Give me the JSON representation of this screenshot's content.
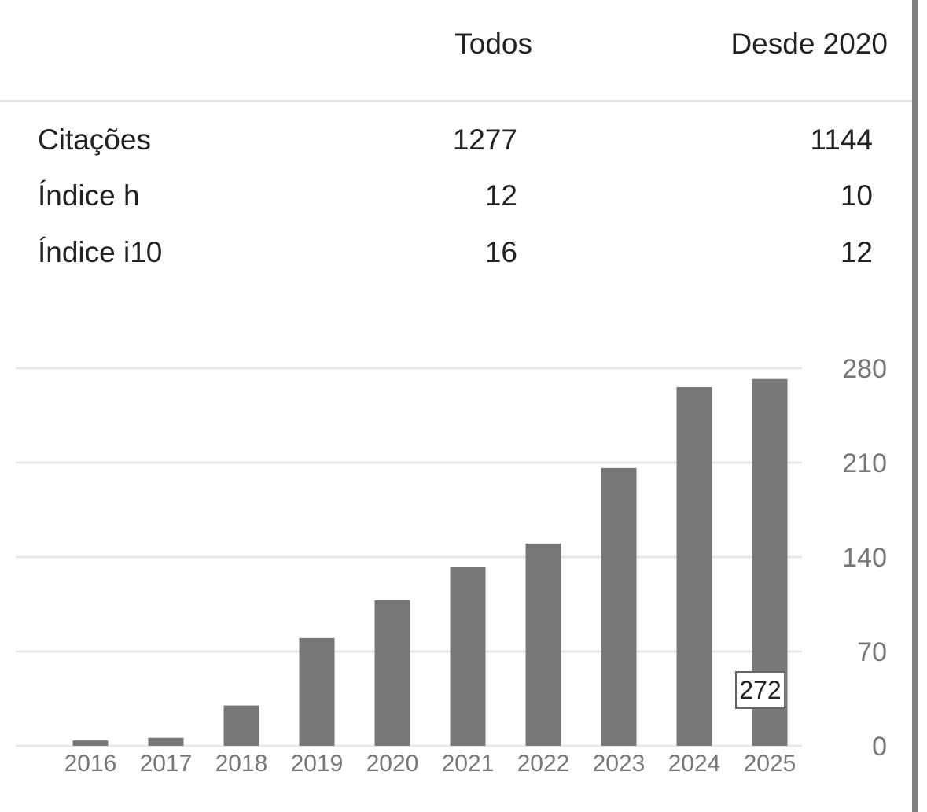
{
  "table": {
    "col_all": "Todos",
    "col_since": "Desde 2020",
    "rows": [
      {
        "label": "Citações",
        "all": "1277",
        "since": "1144"
      },
      {
        "label": "Índice h",
        "all": "12",
        "since": "10"
      },
      {
        "label": "Índice i10",
        "all": "16",
        "since": "12"
      }
    ]
  },
  "chart_data": {
    "type": "bar",
    "categories": [
      "2016",
      "2017",
      "2018",
      "2019",
      "2020",
      "2021",
      "2022",
      "2023",
      "2024",
      "2025"
    ],
    "values": [
      4,
      6,
      30,
      80,
      108,
      133,
      150,
      206,
      266,
      272
    ],
    "ylim": [
      0,
      280
    ],
    "yticks": [
      0,
      70,
      140,
      210,
      280
    ],
    "grid": true,
    "y_axis_side": "right",
    "bar_color": "#777777",
    "tooltip": {
      "category": "2025",
      "label": "272"
    }
  }
}
